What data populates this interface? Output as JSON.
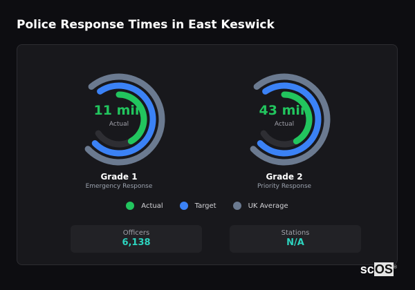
{
  "title": "Police Response Times in East Keswick",
  "colors": {
    "actual": "#22c55e",
    "target": "#3b82f6",
    "uk_average": "#6b7a90",
    "track": "#2e2e33",
    "stat_value": "#2dd4bf"
  },
  "gauges": [
    {
      "value": "11 min",
      "sub": "Actual",
      "name": "Grade 1",
      "desc": "Emergency Response",
      "actual_fraction": 0.42,
      "target_fraction": 0.72,
      "uk_average_fraction": 0.74
    },
    {
      "value": "43 min",
      "sub": "Actual",
      "name": "Grade 2",
      "desc": "Priority Response",
      "actual_fraction": 0.42,
      "target_fraction": 0.72,
      "uk_average_fraction": 0.74
    }
  ],
  "legend": [
    {
      "label": "Actual",
      "color": "#22c55e"
    },
    {
      "label": "Target",
      "color": "#3b82f6"
    },
    {
      "label": "UK Average",
      "color": "#6b7a90"
    }
  ],
  "stats": [
    {
      "label": "Officers",
      "value": "6,138"
    },
    {
      "label": "Stations",
      "value": "N/A"
    }
  ],
  "logo": "scOS"
}
